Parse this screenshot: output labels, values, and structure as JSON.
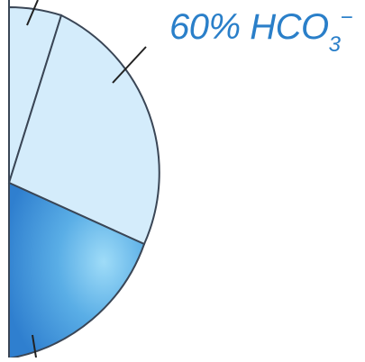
{
  "label": {
    "percent": "60%",
    "species": "HCO",
    "subscript": "3",
    "superscript": "−"
  },
  "colors": {
    "label_text": "#2a7fc9",
    "segment_light": "#d4ecfb",
    "segment_dark": "#2f7fcf",
    "segment_dark_highlight": "#86d3f5",
    "outline": "#3a4656"
  }
}
